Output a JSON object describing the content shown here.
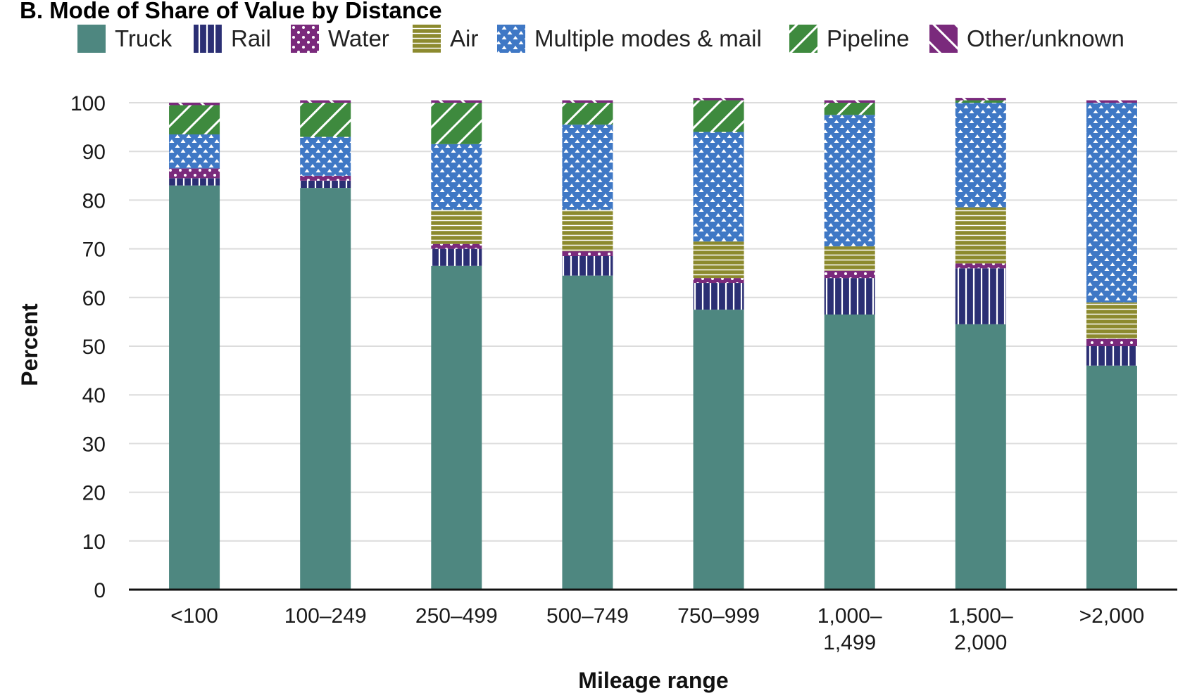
{
  "chart_data": {
    "type": "bar",
    "stacked": true,
    "title": "B. Mode of Share of Value by Distance",
    "xlabel": "Mileage range",
    "ylabel": "Percent",
    "ylim": [
      0,
      100
    ],
    "yticks": [
      0,
      10,
      20,
      30,
      40,
      50,
      60,
      70,
      80,
      90,
      100
    ],
    "grid": true,
    "legend": "top",
    "categories": [
      [
        "<100"
      ],
      [
        "100–249"
      ],
      [
        "250–499"
      ],
      [
        "500–749"
      ],
      [
        "750–999"
      ],
      [
        "1,000–",
        "1,499"
      ],
      [
        "1,500–",
        "2,000"
      ],
      [
        ">2,000"
      ]
    ],
    "series": [
      {
        "name": "Truck",
        "color": "#4e8780",
        "pattern": "solid",
        "values": [
          83.0,
          82.5,
          66.5,
          64.5,
          57.5,
          56.5,
          54.5,
          46.0
        ]
      },
      {
        "name": "Rail",
        "color": "#2b2f74",
        "pattern": "vertical-lines",
        "values": [
          1.5,
          1.5,
          3.5,
          4.0,
          5.5,
          7.5,
          11.5,
          4.0
        ]
      },
      {
        "name": "Water",
        "color": "#7a2a7c",
        "pattern": "dots",
        "values": [
          2.0,
          1.0,
          1.0,
          1.0,
          1.0,
          1.5,
          1.0,
          1.5
        ]
      },
      {
        "name": "Air",
        "color": "#8c8a2e",
        "pattern": "horizontal-lines",
        "values": [
          0.0,
          0.0,
          7.0,
          8.5,
          7.5,
          5.0,
          11.5,
          7.5
        ]
      },
      {
        "name": "Multiple modes & mail",
        "color": "#3f78c5",
        "pattern": "triangles",
        "values": [
          7.0,
          8.0,
          13.5,
          17.5,
          22.5,
          27.0,
          21.5,
          41.0
        ]
      },
      {
        "name": "Pipeline",
        "color": "#3e8a3e",
        "pattern": "diagonal-down",
        "values": [
          6.0,
          7.0,
          8.5,
          4.5,
          6.5,
          2.5,
          0.5,
          0.0
        ]
      },
      {
        "name": "Other/unknown",
        "color": "#7a2a7c",
        "pattern": "diagonal-up",
        "values": [
          0.5,
          0.5,
          0.5,
          0.5,
          0.5,
          0.5,
          0.5,
          0.5
        ]
      }
    ]
  }
}
